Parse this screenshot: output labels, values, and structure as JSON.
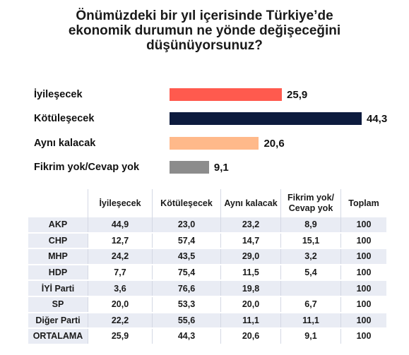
{
  "title_lines": [
    "Önümüzdeki bir yıl içerisinde Türkiye’de",
    "ekonomik durumun ne yönde değişeceğini",
    "düşünüyorsunuz?"
  ],
  "colors": {
    "iyilesecek": "#ff5a4e",
    "kotulesecek": "#0d1b3e",
    "ayni_kalacak": "#ffb98a",
    "fikrim_yok": "#8c8c8c"
  },
  "chart_data": {
    "type": "bar",
    "orientation": "horizontal",
    "categories": [
      "İyileşecek",
      "Kötüleşecek",
      "Aynı kalacak",
      "Fikrim yok/Cevap yok"
    ],
    "values": [
      25.9,
      44.3,
      20.6,
      9.1
    ],
    "value_labels": [
      "25,9",
      "44,3",
      "20,6",
      "9,1"
    ],
    "title": "Önümüzdeki bir yıl içerisinde Türkiye’de ekonomik durumun ne yönde değişeceğini düşünüyorsunuz?",
    "xlim": [
      0,
      44.3
    ],
    "grid": false
  },
  "table": {
    "headers": [
      "",
      "İyileşecek",
      "Kötüleşecek",
      "Aynı kalacak",
      "Fikrim yok/\nCevap yok",
      "Toplam"
    ],
    "header_lines": [
      [
        ""
      ],
      [
        "İyileşecek"
      ],
      [
        "Kötüleşecek"
      ],
      [
        "Aynı kalacak"
      ],
      [
        "Fikrim yok/",
        "Cevap yok"
      ],
      [
        "Toplam"
      ]
    ],
    "rows": [
      [
        "AKP",
        "44,9",
        "23,0",
        "23,2",
        "8,9",
        "100"
      ],
      [
        "CHP",
        "12,7",
        "57,4",
        "14,7",
        "15,1",
        "100"
      ],
      [
        "MHP",
        "24,2",
        "43,5",
        "29,0",
        "3,2",
        "100"
      ],
      [
        "HDP",
        "7,7",
        "75,4",
        "11,5",
        "5,4",
        "100"
      ],
      [
        "İYİ Parti",
        "3,6",
        "76,6",
        "19,8",
        "",
        "100"
      ],
      [
        "SP",
        "20,0",
        "53,3",
        "20,0",
        "6,7",
        "100"
      ],
      [
        "Diğer Parti",
        "22,2",
        "55,6",
        "11,1",
        "11,1",
        "100"
      ],
      [
        "ORTALAMA",
        "25,9",
        "44,3",
        "20,6",
        "9,1",
        "100"
      ]
    ]
  }
}
